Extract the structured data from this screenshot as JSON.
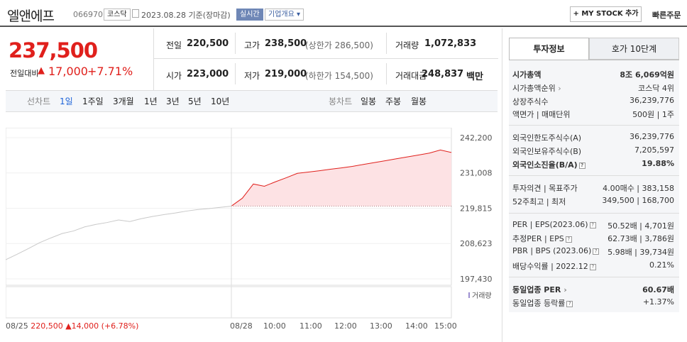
{
  "header": {
    "name": "엘앤에프",
    "code": "066970",
    "market": "코스닥",
    "date": "2023.08.28 기준(장마감)",
    "realtime": "실시간",
    "company_info": "기업개요",
    "mystock": "+ MY STOCK 추가",
    "quick_order": "빠른주문"
  },
  "price": {
    "current": "237,500",
    "change_label": "전일대비",
    "change_arrow": "▲",
    "change": "17,000",
    "change_pct": "+7.71%"
  },
  "summary": {
    "prev_label": "전일",
    "prev": "220,500",
    "high_label": "고가",
    "high": "238,500",
    "upper_limit": "(상한가 286,500)",
    "volume_label": "거래량",
    "volume": "1,072,833",
    "open_label": "시가",
    "open": "223,000",
    "low_label": "저가",
    "low": "219,000",
    "lower_limit": "(하한가 154,500)",
    "amount_label": "거래대금",
    "amount": "248,837",
    "amount_unit": "백만"
  },
  "periods": {
    "line_label": "선차트",
    "line": [
      "1일",
      "1주일",
      "3개월",
      "1년",
      "3년",
      "5년",
      "10년"
    ],
    "active": "1일",
    "candle_label": "봉차트",
    "candle": [
      "일봉",
      "주봉",
      "월봉"
    ]
  },
  "chart_data": {
    "type": "line",
    "y_ticks": [
      "242,200",
      "231,008",
      "219,815",
      "208,623",
      "197,430"
    ],
    "ylim": [
      197430,
      242200
    ],
    "baseline": 220500,
    "x_labels": [
      "08/25",
      "08/28",
      "10:00",
      "11:00",
      "12:00",
      "13:00",
      "14:00",
      "15:00"
    ],
    "prev_day": {
      "date": "08/25",
      "close": "220,500",
      "change_arrow": "▲",
      "change": "14,000",
      "change_pct": "(+6.78%)",
      "values": [
        203500,
        205200,
        207000,
        208900,
        210400,
        211800,
        212600,
        213900,
        214700,
        215300,
        216100,
        215600,
        216500,
        217200,
        217800,
        218300,
        218900,
        219400,
        219700,
        220100,
        220500
      ]
    },
    "today": {
      "date": "08/28",
      "values": [
        220500,
        223000,
        227500,
        226800,
        228200,
        229500,
        230900,
        231300,
        231700,
        232200,
        232600,
        233100,
        233700,
        234300,
        234900,
        235500,
        236100,
        236700,
        237300,
        238300,
        237500
      ]
    },
    "volume_label": "거래량",
    "colors": {
      "up": "#e0201c",
      "area": "#fde2e4",
      "prev": "#c9c9c9",
      "volume": "#9b8ed0"
    }
  },
  "invest": {
    "tab_invest": "투자정보",
    "tab_hoga": "호가 10단계",
    "rows": [
      {
        "label": "시가총액",
        "value": "8조 6,069억원",
        "bold": true
      },
      {
        "label": "시가총액순위",
        "value": "코스닥 4위",
        "arrow": true
      },
      {
        "label": "상장주식수",
        "value": "36,239,776"
      },
      {
        "label": "액면가 | 매매단위",
        "value": "500원 | 1주"
      },
      {
        "label": "외국인한도주식수(A)",
        "value": "36,239,776"
      },
      {
        "label": "외국인보유주식수(B)",
        "value": "7,205,597"
      },
      {
        "label": "외국인소진율(B/A)",
        "value": "19.88%",
        "bold": true,
        "q": true
      },
      {
        "label": "투자의견 | 목표주가",
        "value": "4.00매수 | 383,158"
      },
      {
        "label": "52주최고 | 최저",
        "value": "349,500 | 168,700"
      },
      {
        "label": "PER | EPS(2023.06)",
        "value": "50.52배 | 4,701원",
        "q": true
      },
      {
        "label": "추정PER | EPS",
        "value": "62.73배 | 3,786원",
        "q": true
      },
      {
        "label": "PBR | BPS (2023.06)",
        "value": "5.98배 | 39,734원",
        "q": true
      },
      {
        "label": "배당수익률 | 2022.12",
        "value": "0.21%",
        "q": true
      },
      {
        "label": "동일업종 PER",
        "value": "60.67배",
        "bold": true,
        "arrow": true
      },
      {
        "label": "동일업종 등락률",
        "value": "+1.37%",
        "red": true,
        "q": true
      }
    ]
  }
}
